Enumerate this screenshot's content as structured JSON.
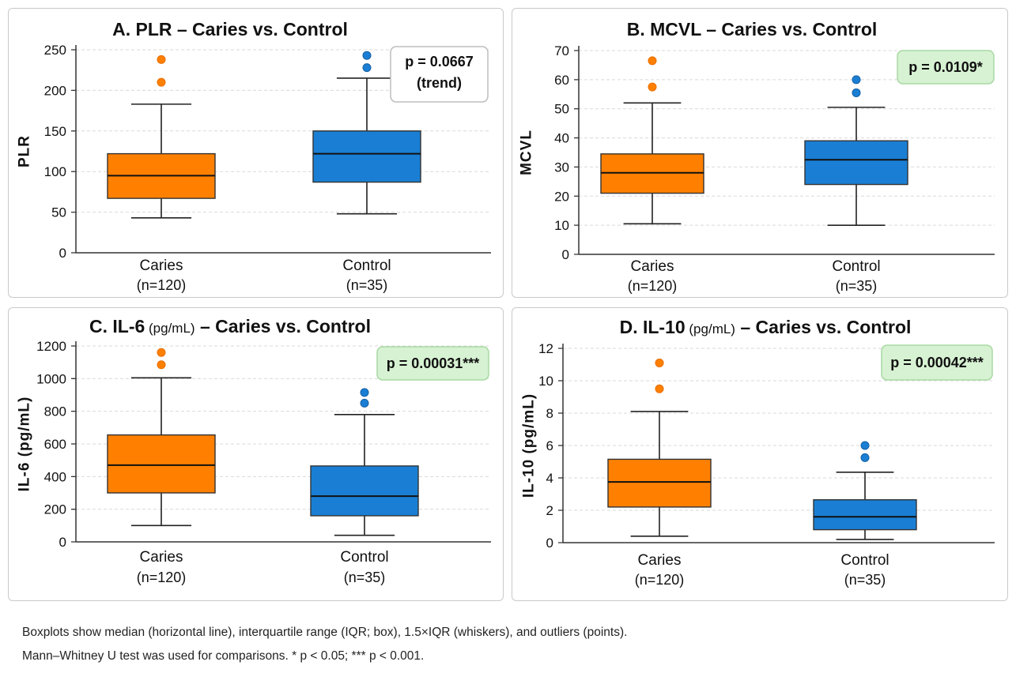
{
  "chart_data": [
    {
      "type": "boxplot",
      "title": "A. PLR – Caries vs. Control",
      "title_main": "A. PLR",
      "title_unit": "",
      "title_rest": " – Caries vs. Control",
      "ylabel": "PLR",
      "ylim": [
        0,
        250
      ],
      "yticks": [
        0,
        50,
        100,
        150,
        200,
        250
      ],
      "grid": true,
      "categories": [
        "Caries",
        "Control"
      ],
      "category_n": [
        "(n=120)",
        "(n=35)"
      ],
      "series": [
        {
          "color": "#ff8000",
          "min": 43,
          "q1": 67,
          "median": 95,
          "q3": 122,
          "max": 183,
          "outliers": [
            210,
            238
          ]
        },
        {
          "color": "#1a7fd4",
          "min": 48,
          "q1": 87,
          "median": 122,
          "q3": 150,
          "max": 215,
          "outliers": [
            228,
            243
          ]
        }
      ],
      "annotation": {
        "lines": [
          "p = 0.0667",
          "(trend)"
        ],
        "significant": false
      }
    },
    {
      "type": "boxplot",
      "title": "B. MCVL – Caries vs. Control",
      "title_main": "B. MCVL",
      "title_unit": "",
      "title_rest": " – Caries vs. Control",
      "ylabel": "MCVL",
      "ylim": [
        0,
        70
      ],
      "yticks": [
        0,
        10,
        20,
        30,
        40,
        50,
        60,
        70
      ],
      "grid": true,
      "categories": [
        "Caries",
        "Control"
      ],
      "category_n": [
        "(n=120)",
        "(n=35)"
      ],
      "series": [
        {
          "color": "#ff8000",
          "min": 10.5,
          "q1": 21,
          "median": 28,
          "q3": 34.5,
          "max": 52,
          "outliers": [
            57.5,
            66.5
          ]
        },
        {
          "color": "#1a7fd4",
          "min": 10,
          "q1": 24,
          "median": 32.5,
          "q3": 39,
          "max": 50.5,
          "outliers": [
            55.5,
            60
          ]
        }
      ],
      "annotation": {
        "lines": [
          "p = 0.0109*"
        ],
        "significant": true
      }
    },
    {
      "type": "boxplot",
      "title": "C. IL-6 (pg/mL) – Caries vs. Control",
      "title_main": "C. IL-6",
      "title_unit": " (pg/mL)",
      "title_rest": " – Caries vs. Control",
      "ylabel": "IL-6 (pg/mL)",
      "ylim": [
        0,
        1200
      ],
      "yticks": [
        0,
        200,
        400,
        600,
        800,
        1000,
        1200
      ],
      "grid": true,
      "categories": [
        "Caries",
        "Control"
      ],
      "category_n": [
        "(n=120)",
        "(n=35)"
      ],
      "series": [
        {
          "color": "#ff8000",
          "min": 100,
          "q1": 300,
          "median": 470,
          "q3": 655,
          "max": 1005,
          "outliers": [
            1085,
            1160
          ]
        },
        {
          "color": "#1a7fd4",
          "min": 40,
          "q1": 160,
          "median": 280,
          "q3": 465,
          "max": 780,
          "outliers": [
            850,
            915
          ]
        }
      ],
      "annotation": {
        "lines": [
          "p = 0.00031***"
        ],
        "significant": true
      }
    },
    {
      "type": "boxplot",
      "title": "D. IL-10 (pg/mL) – Caries vs. Control",
      "title_main": "D. IL-10",
      "title_unit": " (pg/mL)",
      "title_rest": " – Caries vs. Control",
      "ylabel": "IL-10 (pg/mL)",
      "ylim": [
        0,
        12
      ],
      "yticks": [
        0,
        2,
        4,
        6,
        8,
        10,
        12
      ],
      "grid": true,
      "categories": [
        "Caries",
        "Control"
      ],
      "category_n": [
        "(n=120)",
        "(n=35)"
      ],
      "series": [
        {
          "color": "#ff8000",
          "min": 0.4,
          "q1": 2.2,
          "median": 3.75,
          "q3": 5.15,
          "max": 8.1,
          "outliers": [
            9.5,
            11.1
          ]
        },
        {
          "color": "#1a7fd4",
          "min": 0.2,
          "q1": 0.8,
          "median": 1.6,
          "q3": 2.65,
          "max": 4.35,
          "outliers": [
            5.25,
            6.0
          ]
        }
      ],
      "annotation": {
        "lines": [
          "p = 0.00042***"
        ],
        "significant": true
      }
    }
  ],
  "caption": {
    "line1": "Boxplots show median (horizontal line), interquartile range (IQR; box), 1.5×IQR (whiskers), and outliers (points).",
    "line2": "Mann–Whitney U test was used for comparisons.  * p < 0.05;  *** p < 0.001."
  },
  "colors": {
    "caries": "#ff8000",
    "control": "#1a7fd4",
    "sig_box_fill": "#d6f2d2",
    "sig_box_border": "#a9d9a3",
    "box_fill": "#ffffff",
    "box_border": "#bdbdbd"
  }
}
